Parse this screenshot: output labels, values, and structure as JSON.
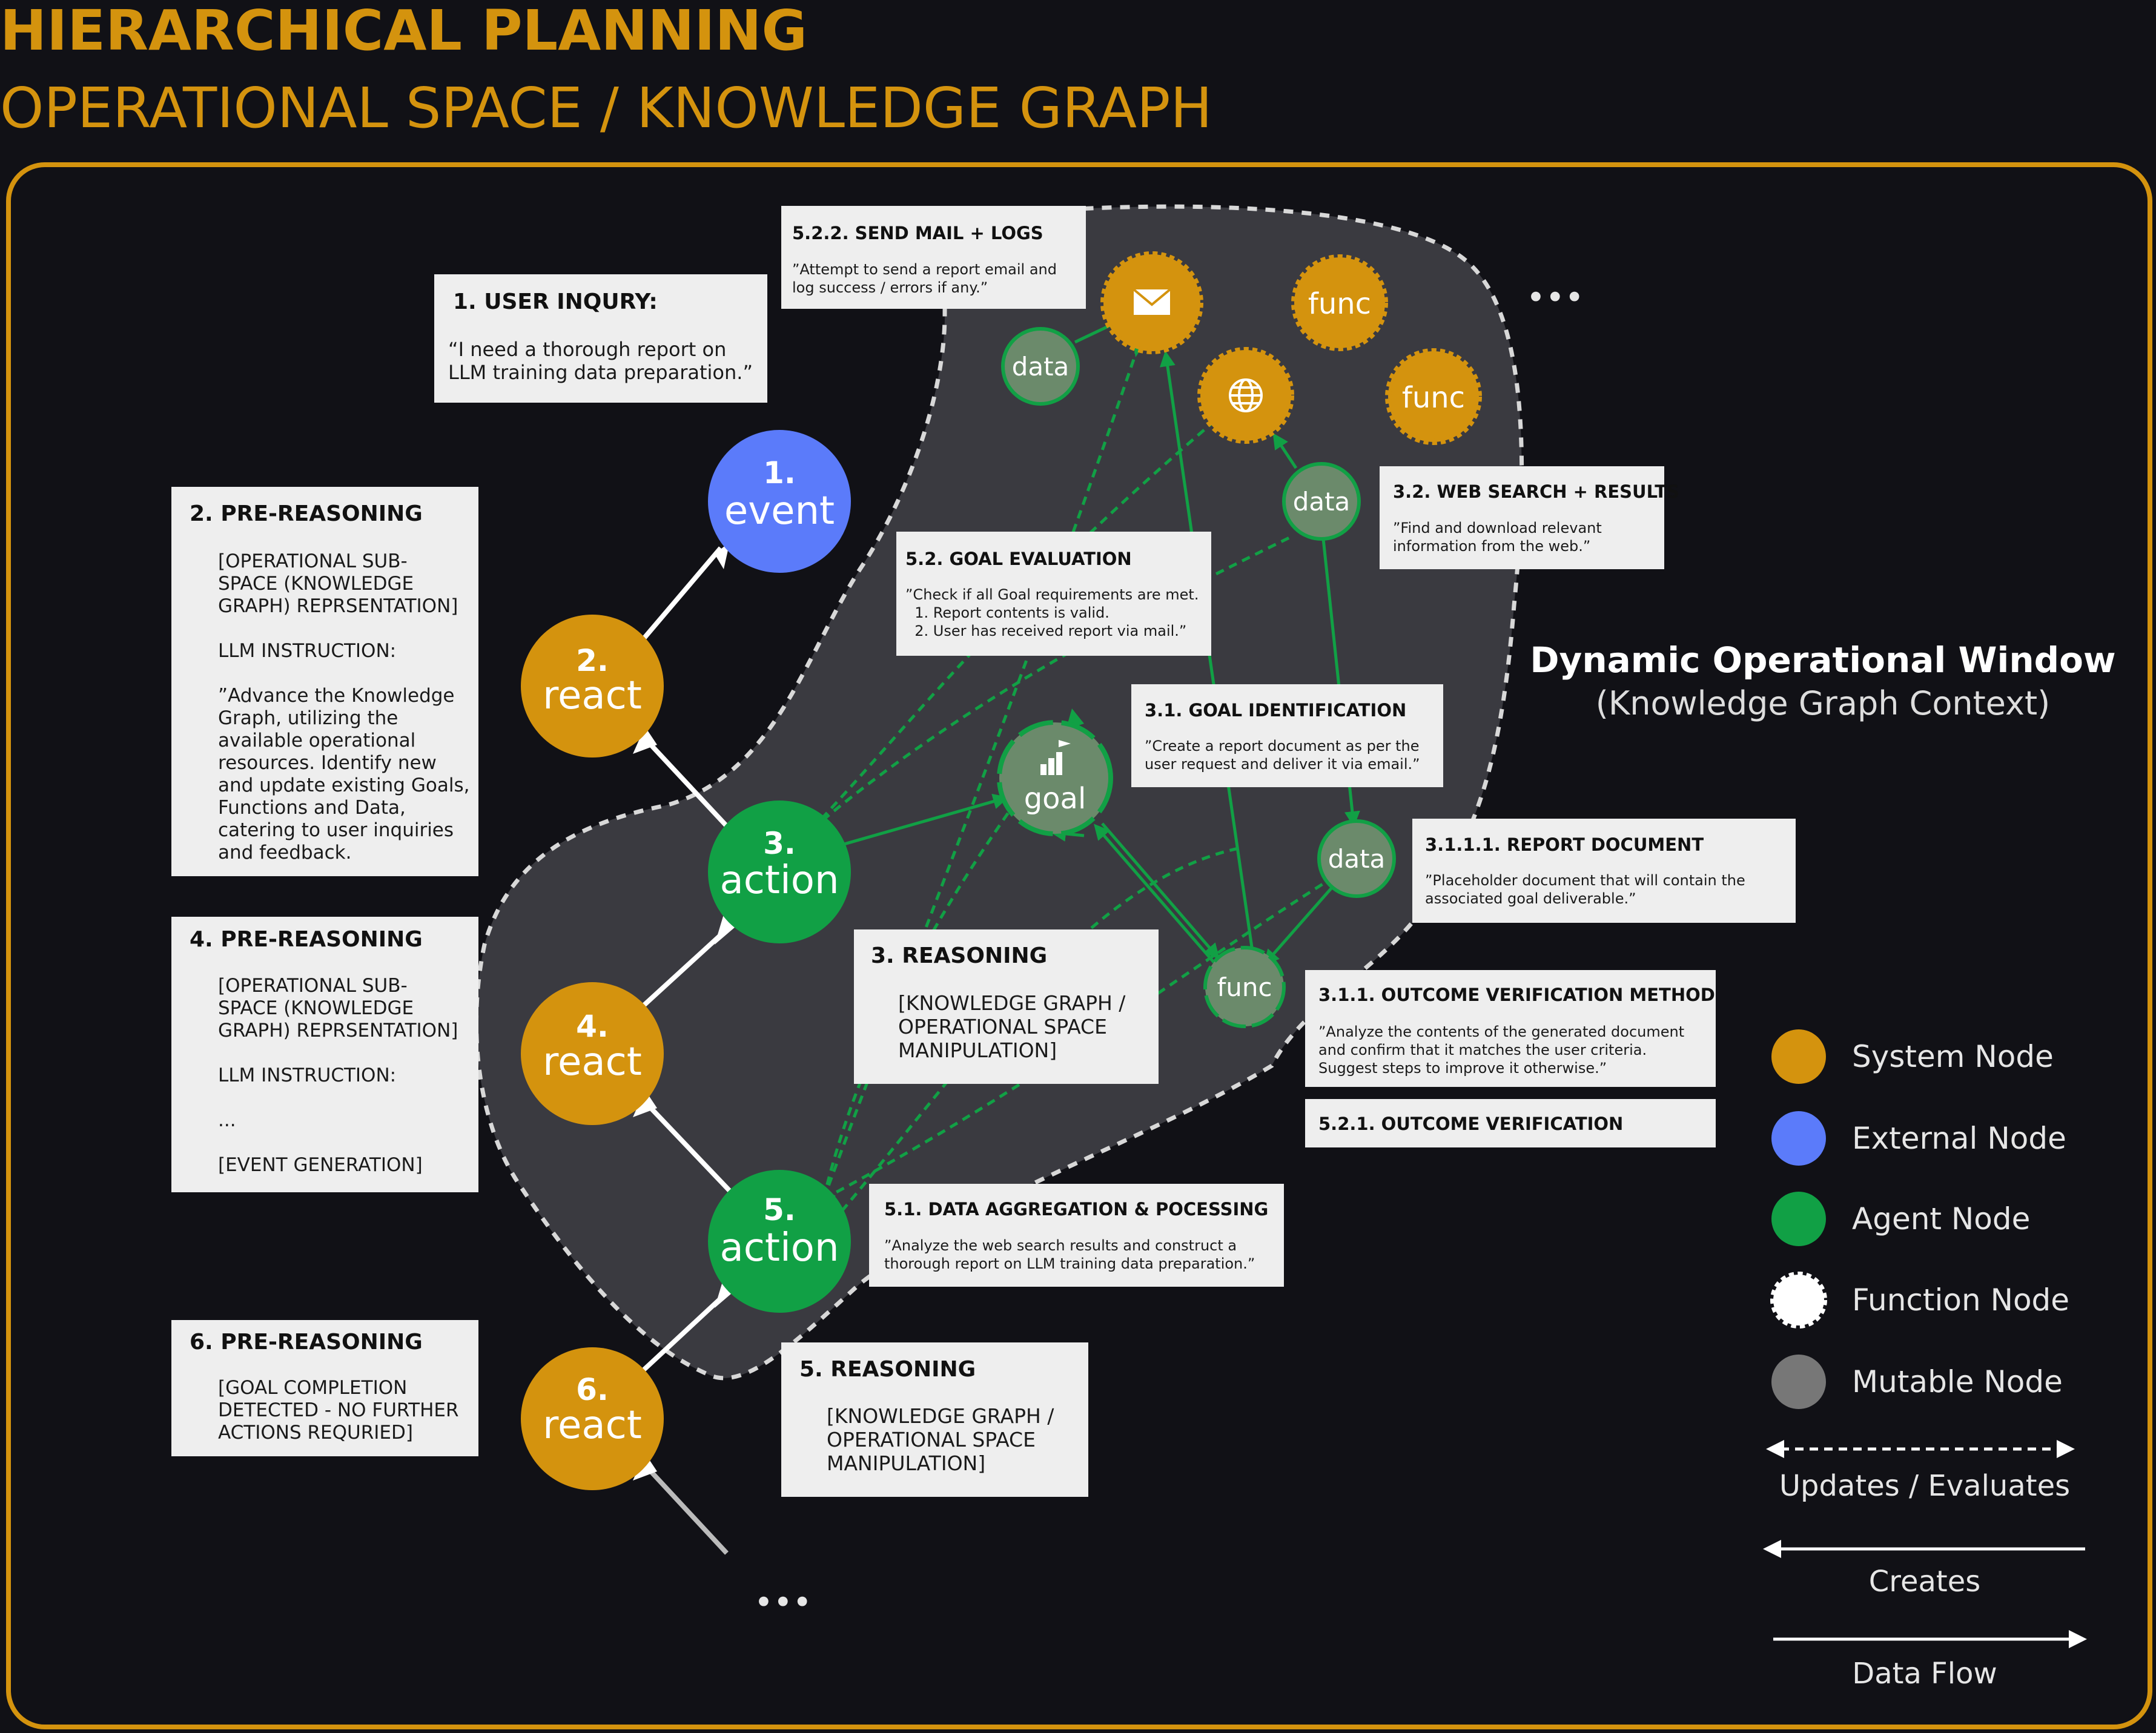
{
  "header": {
    "title": "HIERARCHICAL PLANNING",
    "subtitle": "OPERATIONAL SPACE / KNOWLEDGE GRAPH"
  },
  "window": {
    "title": "Dynamic Operational Window",
    "subtitle": "(Knowledge Graph Context)"
  },
  "colors": {
    "system": "#d4930e",
    "external": "#5b7bfa",
    "agent": "#11a045",
    "mutable": "#6b8a6b",
    "background": "#111116",
    "accent": "#d4930e"
  },
  "chain": {
    "event1": {
      "num": "1.",
      "label": "event"
    },
    "react2": {
      "num": "2.",
      "label": "react"
    },
    "action3": {
      "num": "3.",
      "label": "action"
    },
    "react4": {
      "num": "4.",
      "label": "react"
    },
    "action5": {
      "num": "5.",
      "label": "action"
    },
    "react6": {
      "num": "6.",
      "label": "react"
    }
  },
  "graph_nodes": {
    "data_top": "data",
    "mail_icon": "mail-icon",
    "func_a": "func",
    "globe_icon": "globe-icon",
    "func_b": "func",
    "data_web": "data",
    "goal": "goal",
    "goal_icon": "goal-chart-icon",
    "data_report": "data",
    "func_verify": "func"
  },
  "cards": {
    "user_inquiry": {
      "title": "1. USER INQURY:",
      "lines": [
        "“I need a thorough report on",
        "LLM training data preparation.”"
      ]
    },
    "pre2": {
      "title": "2. PRE-REASONING",
      "lines": [
        "[OPERATIONAL SUB-",
        "SPACE (KNOWLEDGE",
        "GRAPH) REPRSENTATION]",
        "",
        "LLM INSTRUCTION:",
        "",
        "”Advance the Knowledge",
        "Graph, utilizing the",
        "available operational",
        "resources. Identify new",
        "and update existing Goals,",
        "Functions and Data,",
        "catering to user inquiries",
        "and feedback."
      ]
    },
    "pre4": {
      "title": "4. PRE-REASONING",
      "lines": [
        "[OPERATIONAL SUB-",
        "SPACE (KNOWLEDGE",
        "GRAPH) REPRSENTATION]",
        "",
        "LLM INSTRUCTION:",
        "",
        "...",
        "",
        "[EVENT GENERATION]"
      ]
    },
    "pre6": {
      "title": "6. PRE-REASONING",
      "lines": [
        "[GOAL COMPLETION",
        "DETECTED - NO FURTHER",
        "ACTIONS REQURIED]"
      ]
    },
    "send_mail": {
      "title": "5.2.2. SEND MAIL + LOGS",
      "lines": [
        "”Attempt to send a report email and",
        "log success / errors if any.”"
      ]
    },
    "goal_eval": {
      "title": "5.2. GOAL EVALUATION",
      "lines": [
        "”Check if all Goal requirements are met.",
        "  1. Report contents is valid.",
        "  2. User has received report via mail.”"
      ]
    },
    "web_search": {
      "title": "3.2. WEB SEARCH + RESULTS",
      "lines": [
        "”Find and download relevant",
        "information from the web.”"
      ]
    },
    "goal_id": {
      "title": "3.1. GOAL IDENTIFICATION",
      "lines": [
        "”Create a report document as per the",
        "user request and deliver it via email.”"
      ]
    },
    "report_doc": {
      "title": "3.1.1.1. REPORT DOCUMENT",
      "lines": [
        "”Placeholder document that will contain the",
        "associated goal deliverable.”"
      ]
    },
    "reasoning3": {
      "title": "3. REASONING",
      "lines": [
        "[KNOWLEDGE GRAPH /",
        "OPERATIONAL SPACE",
        "MANIPULATION]"
      ]
    },
    "outcome_method": {
      "title": "3.1.1. OUTCOME VERIFICATION METHOD",
      "lines": [
        "”Analyze the contents of the generated document",
        "and confirm that it matches the user criteria.",
        "Suggest steps to improve it otherwise.”"
      ]
    },
    "outcome_verif": {
      "title": "5.2.1. OUTCOME VERIFICATION",
      "lines": []
    },
    "data_agg": {
      "title": "5.1. DATA AGGREGATION & POCESSING",
      "lines": [
        "”Analyze the web search results and construct a",
        "thorough report on LLM training data preparation.”"
      ]
    },
    "reasoning5": {
      "title": "5. REASONING",
      "lines": [
        "[KNOWLEDGE GRAPH /",
        "OPERATIONAL SPACE",
        "MANIPULATION]"
      ]
    }
  },
  "legend": {
    "system": "System Node",
    "external": "External Node",
    "agent": "Agent Node",
    "function": "Function Node",
    "mutable": "Mutable Node",
    "updates": "Updates / Evaluates",
    "creates": "Creates",
    "dataflow": "Data Flow"
  },
  "ellipsis": {
    "top": "•••",
    "bottom": "•••"
  }
}
